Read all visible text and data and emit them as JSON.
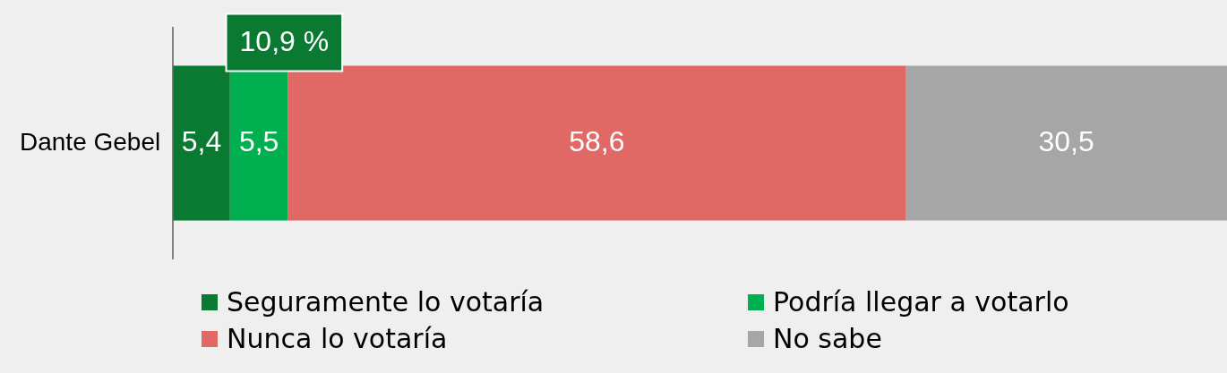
{
  "chart_data": {
    "type": "bar",
    "orientation": "horizontal",
    "stacked": true,
    "categories": [
      "Dante Gebel"
    ],
    "series": [
      {
        "name": "Seguramente lo votaría",
        "color": "#0a7a32",
        "values": [
          5.4
        ],
        "value_labels": [
          "5,4"
        ]
      },
      {
        "name": "Podría llegar a votarlo",
        "color": "#00b050",
        "values": [
          5.5
        ],
        "value_labels": [
          "5,5"
        ]
      },
      {
        "name": "Nunca lo votaría",
        "color": "#e06966",
        "values": [
          58.6
        ],
        "value_labels": [
          "58,6"
        ]
      },
      {
        "name": "No sabe",
        "color": "#a6a6a6",
        "values": [
          30.5
        ],
        "value_labels": [
          "30,5"
        ]
      }
    ],
    "xlim": [
      0,
      100
    ],
    "tick_labels": "y",
    "grid": false,
    "legend": "bottom",
    "annotations": [
      "10,9 %"
    ]
  }
}
